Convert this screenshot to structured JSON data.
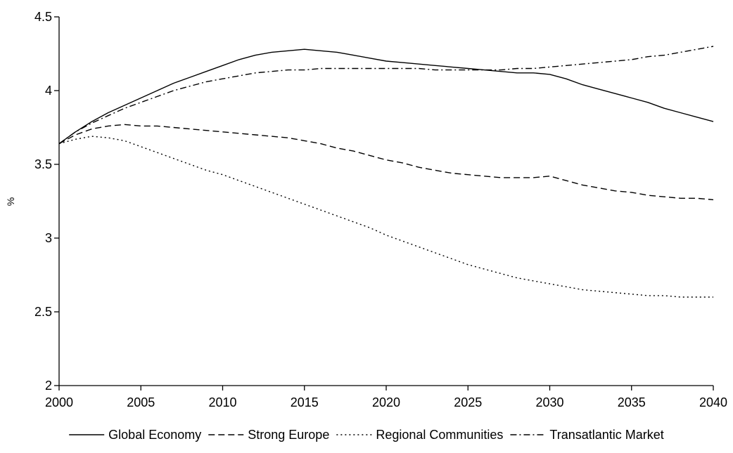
{
  "chart_data": {
    "type": "line",
    "title": "",
    "xlabel": "",
    "ylabel": "%",
    "xlim": [
      2000,
      2040
    ],
    "ylim": [
      2,
      4.5
    ],
    "xticks": [
      2000,
      2005,
      2010,
      2015,
      2020,
      2025,
      2030,
      2035,
      2040
    ],
    "yticks": [
      2,
      2.5,
      3,
      3.5,
      4,
      4.5
    ],
    "ytick_labels": [
      "2",
      "2.5",
      "3",
      "3.5",
      "4",
      "4.5"
    ],
    "grid": false,
    "legend_position": "bottom",
    "x": [
      2000,
      2001,
      2002,
      2003,
      2004,
      2005,
      2006,
      2007,
      2008,
      2009,
      2010,
      2011,
      2012,
      2013,
      2014,
      2015,
      2016,
      2017,
      2018,
      2019,
      2020,
      2021,
      2022,
      2023,
      2024,
      2025,
      2026,
      2027,
      2028,
      2029,
      2030,
      2031,
      2032,
      2033,
      2034,
      2035,
      2036,
      2037,
      2038,
      2039,
      2040
    ],
    "series": [
      {
        "name": "Global Economy",
        "dash": "solid",
        "color": "#000000",
        "values": [
          3.64,
          3.72,
          3.79,
          3.85,
          3.9,
          3.95,
          4.0,
          4.05,
          4.09,
          4.13,
          4.17,
          4.21,
          4.24,
          4.26,
          4.27,
          4.28,
          4.27,
          4.26,
          4.24,
          4.22,
          4.2,
          4.19,
          4.18,
          4.17,
          4.16,
          4.15,
          4.14,
          4.13,
          4.12,
          4.12,
          4.11,
          4.08,
          4.04,
          4.01,
          3.98,
          3.95,
          3.92,
          3.88,
          3.85,
          3.82,
          3.79
        ]
      },
      {
        "name": "Strong Europe",
        "dash": "dashed",
        "color": "#000000",
        "values": [
          3.64,
          3.7,
          3.74,
          3.76,
          3.77,
          3.76,
          3.76,
          3.75,
          3.74,
          3.73,
          3.72,
          3.71,
          3.7,
          3.69,
          3.68,
          3.66,
          3.64,
          3.61,
          3.59,
          3.56,
          3.53,
          3.51,
          3.48,
          3.46,
          3.44,
          3.43,
          3.42,
          3.41,
          3.41,
          3.41,
          3.42,
          3.39,
          3.36,
          3.34,
          3.32,
          3.31,
          3.29,
          3.28,
          3.27,
          3.27,
          3.26
        ]
      },
      {
        "name": "Regional Communities",
        "dash": "dotted",
        "color": "#000000",
        "values": [
          3.64,
          3.67,
          3.69,
          3.68,
          3.66,
          3.62,
          3.58,
          3.54,
          3.5,
          3.46,
          3.43,
          3.39,
          3.35,
          3.31,
          3.27,
          3.23,
          3.19,
          3.15,
          3.11,
          3.07,
          3.02,
          2.98,
          2.94,
          2.9,
          2.86,
          2.82,
          2.79,
          2.76,
          2.73,
          2.71,
          2.69,
          2.67,
          2.65,
          2.64,
          2.63,
          2.62,
          2.61,
          2.61,
          2.6,
          2.6,
          2.6
        ]
      },
      {
        "name": "Transatlantic Market",
        "dash": "dashdot",
        "color": "#000000",
        "values": [
          3.64,
          3.72,
          3.78,
          3.83,
          3.88,
          3.92,
          3.96,
          4.0,
          4.03,
          4.06,
          4.08,
          4.1,
          4.12,
          4.13,
          4.14,
          4.14,
          4.15,
          4.15,
          4.15,
          4.15,
          4.15,
          4.15,
          4.15,
          4.14,
          4.14,
          4.14,
          4.14,
          4.14,
          4.15,
          4.15,
          4.16,
          4.17,
          4.18,
          4.19,
          4.2,
          4.21,
          4.23,
          4.24,
          4.26,
          4.28,
          4.3
        ]
      }
    ]
  }
}
